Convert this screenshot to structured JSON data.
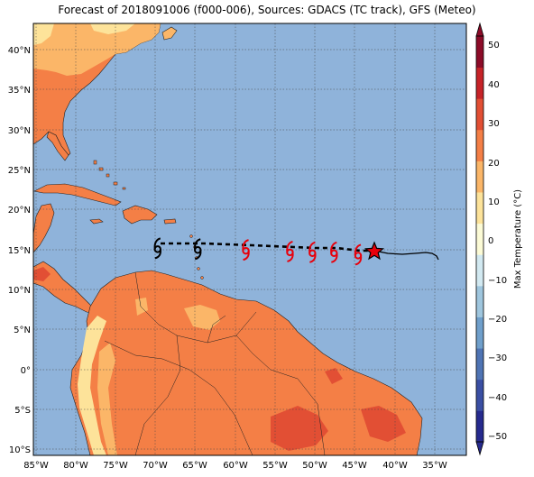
{
  "title": "Forecast of 2018091006 (f000-006), Sources: GDACS (TC track), GFS (Meteo)",
  "map": {
    "lon_range": [
      -85,
      -31
    ],
    "lat_range": [
      -10.5,
      43.5
    ],
    "lon_ticks": [
      "85°W",
      "80°W",
      "75°W",
      "70°W",
      "65°W",
      "60°W",
      "55°W",
      "50°W",
      "45°W",
      "40°W",
      "35°W"
    ],
    "lat_ticks": [
      "10°S",
      "5°S",
      "0°",
      "5°N",
      "10°N",
      "15°N",
      "20°N",
      "25°N",
      "30°N",
      "35°N",
      "40°N"
    ],
    "ocean_color": "#8fb3da",
    "grid": "dotted"
  },
  "colorbar": {
    "label": "Max Temperature (°C)",
    "ticks": [
      "−50",
      "−40",
      "−30",
      "−20",
      "−10",
      "0",
      "10",
      "20",
      "30",
      "40",
      "50"
    ],
    "colors": [
      "#262a8e",
      "#3a4fa3",
      "#4f74b4",
      "#6f9fcb",
      "#9fc6de",
      "#d2e9f1",
      "#fcfbd6",
      "#fde39a",
      "#fbb668",
      "#f47f46",
      "#e24f34",
      "#c62328",
      "#8c0b28"
    ]
  },
  "track": {
    "past_color": "#000000",
    "forecast_color": "#000000",
    "current_position_marker": "star",
    "storm_symbols": [
      {
        "lon": -69.5,
        "lat": 15.5,
        "color": "#000000"
      },
      {
        "lon": -64.5,
        "lat": 15.4,
        "color": "#000000"
      },
      {
        "lon": -58.5,
        "lat": 15.3,
        "color": "#e8000b"
      },
      {
        "lon": -53.0,
        "lat": 15.1,
        "color": "#e8000b"
      },
      {
        "lon": -50.2,
        "lat": 15.0,
        "color": "#e8000b"
      },
      {
        "lon": -47.5,
        "lat": 15.0,
        "color": "#e8000b"
      },
      {
        "lon": -44.5,
        "lat": 14.7,
        "color": "#e8000b"
      }
    ],
    "current": {
      "lon": -42.7,
      "lat": 14.7
    }
  }
}
